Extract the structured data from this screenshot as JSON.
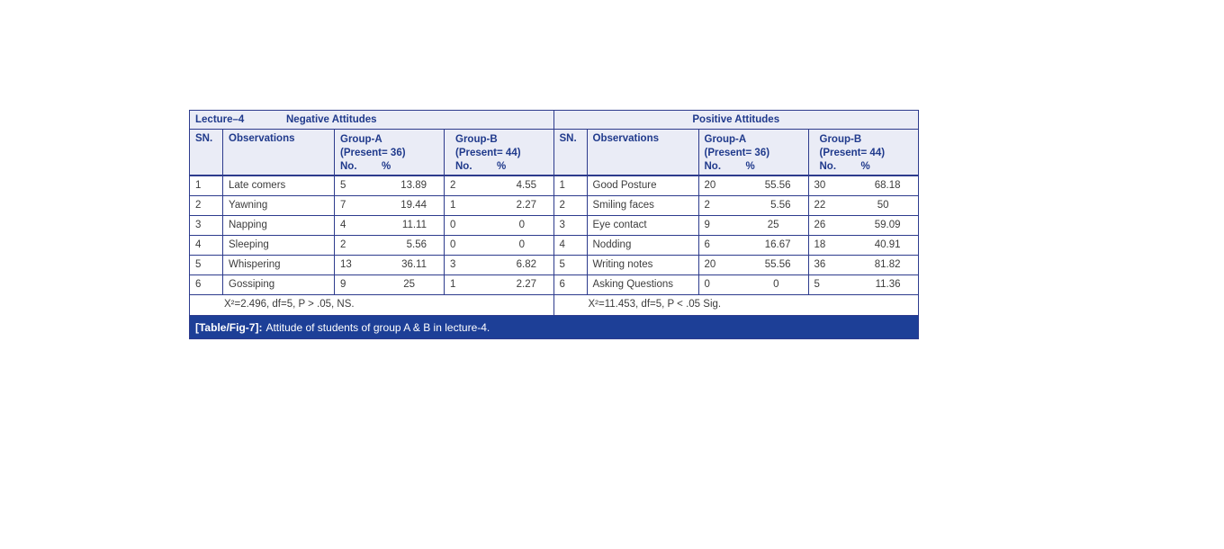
{
  "figure": {
    "caption_label": "[Table/Fig-7]:",
    "caption_text": "Attitude of students of group A & B in lecture-4."
  },
  "table": {
    "lecture_label": "Lecture–4",
    "halves": [
      {
        "title": "Negative Attitudes",
        "sn_header": "SN.",
        "obs_header": "Observations",
        "groups": [
          {
            "name": "Group-A",
            "present": "(Present= 36)",
            "no_label": "No.",
            "pct_label": "%"
          },
          {
            "name": "Group-B",
            "present": "(Present= 44)",
            "no_label": "No.",
            "pct_label": "%"
          }
        ],
        "rows": [
          {
            "sn": "1",
            "obs": "Late comers",
            "a_no": "5",
            "a_pct": "13.89",
            "b_no": "2",
            "b_pct": "4.55"
          },
          {
            "sn": "2",
            "obs": "Yawning",
            "a_no": "7",
            "a_pct": "19.44",
            "b_no": "1",
            "b_pct": "2.27"
          },
          {
            "sn": "3",
            "obs": "Napping",
            "a_no": "4",
            "a_pct": "11.11",
            "b_no": "0",
            "b_pct": "0"
          },
          {
            "sn": "4",
            "obs": "Sleeping",
            "a_no": "2",
            "a_pct": "5.56",
            "b_no": "0",
            "b_pct": "0"
          },
          {
            "sn": "5",
            "obs": "Whispering",
            "a_no": "13",
            "a_pct": "36.11",
            "b_no": "3",
            "b_pct": "6.82"
          },
          {
            "sn": "6",
            "obs": "Gossiping",
            "a_no": "9",
            "a_pct": "25",
            "b_no": "1",
            "b_pct": "2.27"
          }
        ],
        "footer": "X²=2.496, df=5, P > .05, NS."
      },
      {
        "title": "Positive Attitudes",
        "sn_header": "SN.",
        "obs_header": "Observations",
        "groups": [
          {
            "name": "Group-A",
            "present": "(Present= 36)",
            "no_label": "No.",
            "pct_label": "%"
          },
          {
            "name": "Group-B",
            "present": "(Present= 44)",
            "no_label": "No.",
            "pct_label": "%"
          }
        ],
        "rows": [
          {
            "sn": "1",
            "obs": "Good Posture",
            "a_no": "20",
            "a_pct": "55.56",
            "b_no": "30",
            "b_pct": "68.18"
          },
          {
            "sn": "2",
            "obs": "Smiling faces",
            "a_no": "2",
            "a_pct": "5.56",
            "b_no": "22",
            "b_pct": "50"
          },
          {
            "sn": "3",
            "obs": "Eye contact",
            "a_no": "9",
            "a_pct": "25",
            "b_no": "26",
            "b_pct": "59.09"
          },
          {
            "sn": "4",
            "obs": "Nodding",
            "a_no": "6",
            "a_pct": "16.67",
            "b_no": "18",
            "b_pct": "40.91"
          },
          {
            "sn": "5",
            "obs": "Writing notes",
            "a_no": "20",
            "a_pct": "55.56",
            "b_no": "36",
            "b_pct": "81.82"
          },
          {
            "sn": "6",
            "obs": "Asking Questions",
            "a_no": "0",
            "a_pct": "0",
            "b_no": "5",
            "b_pct": "11.36"
          }
        ],
        "footer": "X²=11.453, df=5, P < .05 Sig."
      }
    ]
  },
  "colors": {
    "border": "#2d3b8d",
    "header_bg": "#eaecf6",
    "header_text": "#203a8c",
    "caption_bg": "#1d3f97",
    "caption_text": "#ffffff",
    "body_text": "#3c3c3c"
  }
}
